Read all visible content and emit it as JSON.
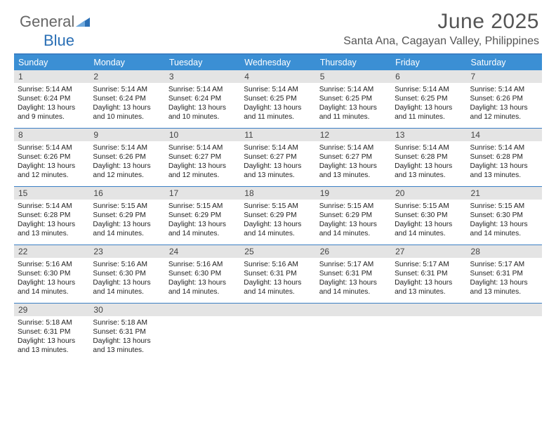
{
  "logo": {
    "part1": "General",
    "part2": "Blue"
  },
  "header": {
    "title": "June 2025",
    "subtitle": "Santa Ana, Cagayan Valley, Philippines"
  },
  "colors": {
    "header_bar": "#3b8fd4",
    "border": "#3b7fc4",
    "daynum_bg": "#e4e4e4",
    "text": "#222222",
    "title_color": "#555555"
  },
  "weekdays": [
    "Sunday",
    "Monday",
    "Tuesday",
    "Wednesday",
    "Thursday",
    "Friday",
    "Saturday"
  ],
  "weeks": [
    {
      "nums": [
        "1",
        "2",
        "3",
        "4",
        "5",
        "6",
        "7"
      ],
      "cells": [
        {
          "sunrise": "Sunrise: 5:14 AM",
          "sunset": "Sunset: 6:24 PM",
          "day1": "Daylight: 13 hours",
          "day2": "and 9 minutes."
        },
        {
          "sunrise": "Sunrise: 5:14 AM",
          "sunset": "Sunset: 6:24 PM",
          "day1": "Daylight: 13 hours",
          "day2": "and 10 minutes."
        },
        {
          "sunrise": "Sunrise: 5:14 AM",
          "sunset": "Sunset: 6:24 PM",
          "day1": "Daylight: 13 hours",
          "day2": "and 10 minutes."
        },
        {
          "sunrise": "Sunrise: 5:14 AM",
          "sunset": "Sunset: 6:25 PM",
          "day1": "Daylight: 13 hours",
          "day2": "and 11 minutes."
        },
        {
          "sunrise": "Sunrise: 5:14 AM",
          "sunset": "Sunset: 6:25 PM",
          "day1": "Daylight: 13 hours",
          "day2": "and 11 minutes."
        },
        {
          "sunrise": "Sunrise: 5:14 AM",
          "sunset": "Sunset: 6:25 PM",
          "day1": "Daylight: 13 hours",
          "day2": "and 11 minutes."
        },
        {
          "sunrise": "Sunrise: 5:14 AM",
          "sunset": "Sunset: 6:26 PM",
          "day1": "Daylight: 13 hours",
          "day2": "and 12 minutes."
        }
      ]
    },
    {
      "nums": [
        "8",
        "9",
        "10",
        "11",
        "12",
        "13",
        "14"
      ],
      "cells": [
        {
          "sunrise": "Sunrise: 5:14 AM",
          "sunset": "Sunset: 6:26 PM",
          "day1": "Daylight: 13 hours",
          "day2": "and 12 minutes."
        },
        {
          "sunrise": "Sunrise: 5:14 AM",
          "sunset": "Sunset: 6:26 PM",
          "day1": "Daylight: 13 hours",
          "day2": "and 12 minutes."
        },
        {
          "sunrise": "Sunrise: 5:14 AM",
          "sunset": "Sunset: 6:27 PM",
          "day1": "Daylight: 13 hours",
          "day2": "and 12 minutes."
        },
        {
          "sunrise": "Sunrise: 5:14 AM",
          "sunset": "Sunset: 6:27 PM",
          "day1": "Daylight: 13 hours",
          "day2": "and 13 minutes."
        },
        {
          "sunrise": "Sunrise: 5:14 AM",
          "sunset": "Sunset: 6:27 PM",
          "day1": "Daylight: 13 hours",
          "day2": "and 13 minutes."
        },
        {
          "sunrise": "Sunrise: 5:14 AM",
          "sunset": "Sunset: 6:28 PM",
          "day1": "Daylight: 13 hours",
          "day2": "and 13 minutes."
        },
        {
          "sunrise": "Sunrise: 5:14 AM",
          "sunset": "Sunset: 6:28 PM",
          "day1": "Daylight: 13 hours",
          "day2": "and 13 minutes."
        }
      ]
    },
    {
      "nums": [
        "15",
        "16",
        "17",
        "18",
        "19",
        "20",
        "21"
      ],
      "cells": [
        {
          "sunrise": "Sunrise: 5:14 AM",
          "sunset": "Sunset: 6:28 PM",
          "day1": "Daylight: 13 hours",
          "day2": "and 13 minutes."
        },
        {
          "sunrise": "Sunrise: 5:15 AM",
          "sunset": "Sunset: 6:29 PM",
          "day1": "Daylight: 13 hours",
          "day2": "and 14 minutes."
        },
        {
          "sunrise": "Sunrise: 5:15 AM",
          "sunset": "Sunset: 6:29 PM",
          "day1": "Daylight: 13 hours",
          "day2": "and 14 minutes."
        },
        {
          "sunrise": "Sunrise: 5:15 AM",
          "sunset": "Sunset: 6:29 PM",
          "day1": "Daylight: 13 hours",
          "day2": "and 14 minutes."
        },
        {
          "sunrise": "Sunrise: 5:15 AM",
          "sunset": "Sunset: 6:29 PM",
          "day1": "Daylight: 13 hours",
          "day2": "and 14 minutes."
        },
        {
          "sunrise": "Sunrise: 5:15 AM",
          "sunset": "Sunset: 6:30 PM",
          "day1": "Daylight: 13 hours",
          "day2": "and 14 minutes."
        },
        {
          "sunrise": "Sunrise: 5:15 AM",
          "sunset": "Sunset: 6:30 PM",
          "day1": "Daylight: 13 hours",
          "day2": "and 14 minutes."
        }
      ]
    },
    {
      "nums": [
        "22",
        "23",
        "24",
        "25",
        "26",
        "27",
        "28"
      ],
      "cells": [
        {
          "sunrise": "Sunrise: 5:16 AM",
          "sunset": "Sunset: 6:30 PM",
          "day1": "Daylight: 13 hours",
          "day2": "and 14 minutes."
        },
        {
          "sunrise": "Sunrise: 5:16 AM",
          "sunset": "Sunset: 6:30 PM",
          "day1": "Daylight: 13 hours",
          "day2": "and 14 minutes."
        },
        {
          "sunrise": "Sunrise: 5:16 AM",
          "sunset": "Sunset: 6:30 PM",
          "day1": "Daylight: 13 hours",
          "day2": "and 14 minutes."
        },
        {
          "sunrise": "Sunrise: 5:16 AM",
          "sunset": "Sunset: 6:31 PM",
          "day1": "Daylight: 13 hours",
          "day2": "and 14 minutes."
        },
        {
          "sunrise": "Sunrise: 5:17 AM",
          "sunset": "Sunset: 6:31 PM",
          "day1": "Daylight: 13 hours",
          "day2": "and 14 minutes."
        },
        {
          "sunrise": "Sunrise: 5:17 AM",
          "sunset": "Sunset: 6:31 PM",
          "day1": "Daylight: 13 hours",
          "day2": "and 13 minutes."
        },
        {
          "sunrise": "Sunrise: 5:17 AM",
          "sunset": "Sunset: 6:31 PM",
          "day1": "Daylight: 13 hours",
          "day2": "and 13 minutes."
        }
      ]
    },
    {
      "nums": [
        "29",
        "30",
        "",
        "",
        "",
        "",
        ""
      ],
      "cells": [
        {
          "sunrise": "Sunrise: 5:18 AM",
          "sunset": "Sunset: 6:31 PM",
          "day1": "Daylight: 13 hours",
          "day2": "and 13 minutes."
        },
        {
          "sunrise": "Sunrise: 5:18 AM",
          "sunset": "Sunset: 6:31 PM",
          "day1": "Daylight: 13 hours",
          "day2": "and 13 minutes."
        },
        null,
        null,
        null,
        null,
        null
      ]
    }
  ]
}
